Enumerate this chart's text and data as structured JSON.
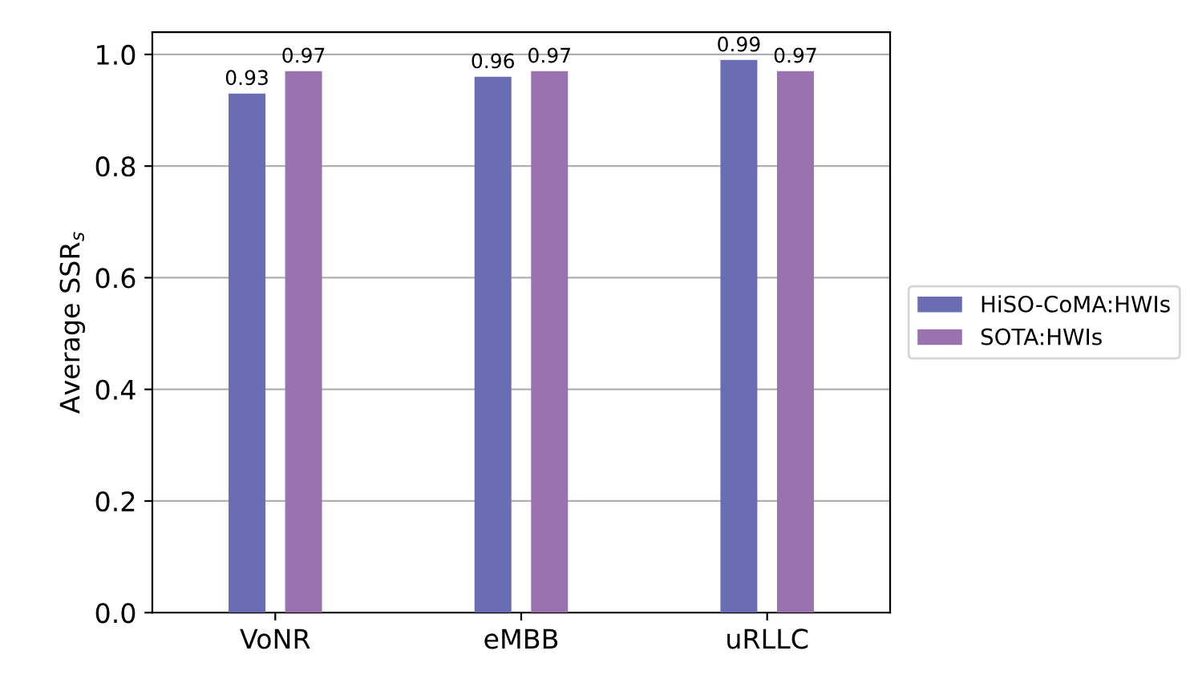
{
  "chart_data": {
    "type": "bar",
    "ylabel": "Average SSR$_{s}$",
    "categories": [
      "VoNR",
      "eMBB",
      "uRLLC"
    ],
    "series": [
      {
        "name": "HiSO-CoMA:HWIs",
        "color": "#6a6db3",
        "values": [
          0.93,
          0.96,
          0.99
        ]
      },
      {
        "name": "SOTA:HWIs",
        "color": "#9b72b0",
        "values": [
          0.97,
          0.97,
          0.97
        ]
      }
    ],
    "ylim": [
      0,
      1.04
    ],
    "yticks": [
      {
        "value": 0,
        "label": "0.0"
      },
      {
        "value": 0.2,
        "label": "0.2"
      },
      {
        "value": 0.4,
        "label": "0.4"
      },
      {
        "value": 0.6,
        "label": "0.6"
      },
      {
        "value": 0.8,
        "label": "0.8"
      },
      {
        "value": 1,
        "label": "1.0"
      }
    ],
    "grid": "y",
    "legend": "right",
    "data_labels": true
  }
}
